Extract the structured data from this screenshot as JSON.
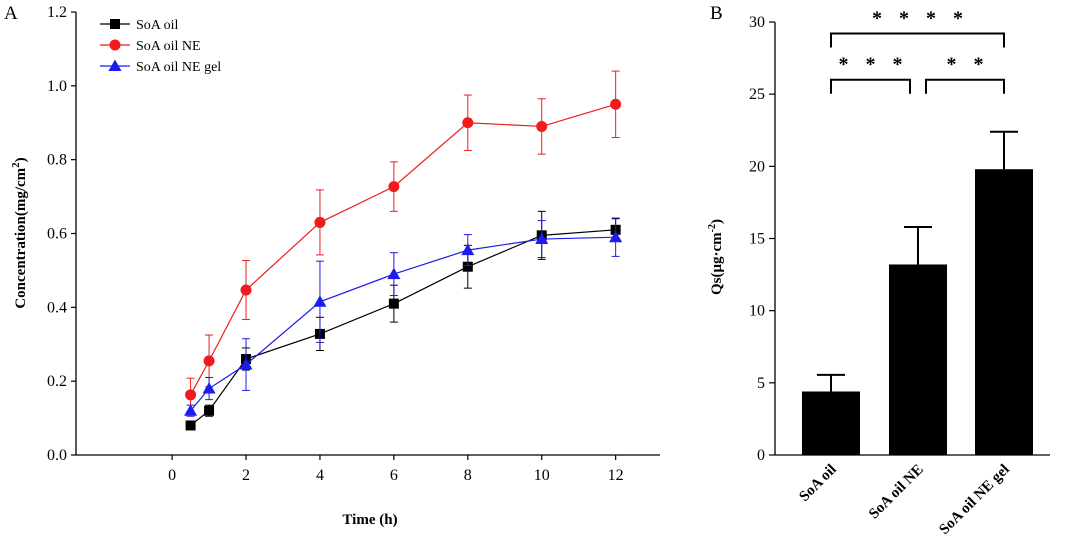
{
  "chart_data": [
    {
      "panel": "A",
      "type": "line",
      "xlabel": "Time (h)",
      "ylabel": "Concentration(mg/cm",
      "ylabel_sup": "2",
      "ylabel_close": ")",
      "xlim": [
        -2.6,
        13.2
      ],
      "ylim": [
        0,
        1.2
      ],
      "xticks": [
        0,
        2,
        4,
        6,
        8,
        10,
        12
      ],
      "yticks": [
        "0.0",
        "0.2",
        "0.4",
        "0.6",
        "0.8",
        "1.0",
        "1.2"
      ],
      "x": [
        0.5,
        1,
        2,
        4,
        6,
        8,
        10,
        12
      ],
      "series": [
        {
          "name": "SoA oil",
          "color": "#000000",
          "marker": "square",
          "values": [
            0.08,
            0.12,
            0.26,
            0.328,
            0.41,
            0.51,
            0.595,
            0.61
          ],
          "errors": [
            0.01,
            0.015,
            0.03,
            0.045,
            0.05,
            0.058,
            0.065,
            0.03
          ]
        },
        {
          "name": "SoA oil NE",
          "color": "#ee1c1c",
          "marker": "circle",
          "values": [
            0.163,
            0.255,
            0.447,
            0.63,
            0.727,
            0.9,
            0.89,
            0.95
          ],
          "errors": [
            0.045,
            0.07,
            0.08,
            0.088,
            0.067,
            0.075,
            0.075,
            0.09
          ]
        },
        {
          "name": "SoA oil NE gel",
          "color": "#1c1ced",
          "marker": "triangle",
          "values": [
            0.12,
            0.18,
            0.245,
            0.415,
            0.49,
            0.555,
            0.585,
            0.59
          ],
          "errors": [
            0.015,
            0.03,
            0.07,
            0.11,
            0.058,
            0.042,
            0.05,
            0.052
          ]
        }
      ]
    },
    {
      "panel": "B",
      "type": "bar",
      "ylabel": "Qs(μg·cm",
      "ylabel_sup": "-2",
      "ylabel_close": ")",
      "ylim": [
        0,
        30
      ],
      "yticks": [
        0,
        5,
        10,
        15,
        20,
        25,
        30
      ],
      "categories": [
        "SoA oil",
        "SoA oil NE",
        "SoA oil NE gel"
      ],
      "values": [
        4.4,
        13.2,
        19.8
      ],
      "errors": [
        1.15,
        2.6,
        2.6
      ],
      "color": "#000000",
      "significance": [
        {
          "from": 0,
          "to": 1,
          "level": 26,
          "label": "* * *"
        },
        {
          "from": 1,
          "to": 2,
          "level": 26,
          "label": "* *"
        },
        {
          "from": 0,
          "to": 2,
          "level": 29.2,
          "label": "* * * *"
        }
      ]
    }
  ]
}
